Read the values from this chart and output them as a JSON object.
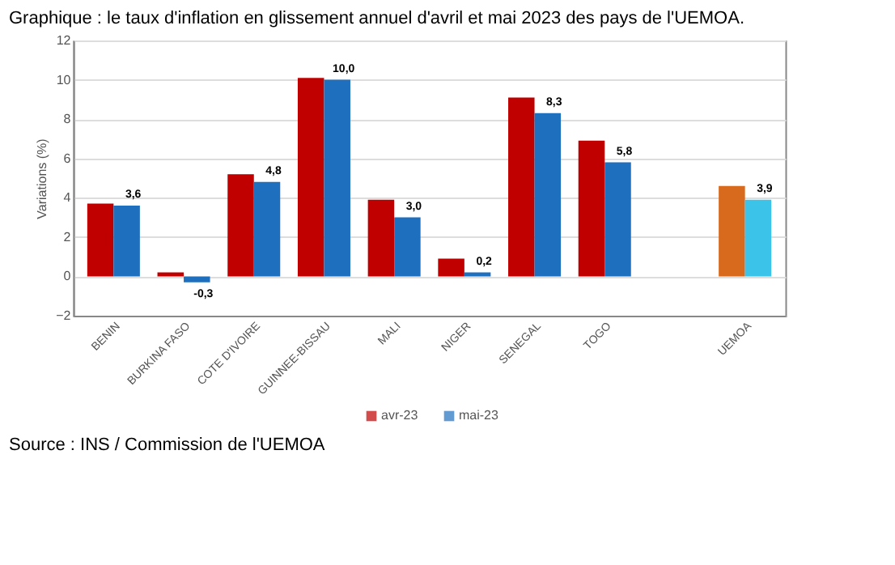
{
  "chart_data": {
    "type": "bar",
    "title": "Graphique : le taux d'inflation en glissement annuel d'avril et mai 2023 des pays de l'UEMOA.",
    "ylabel": "Variations (%)",
    "categories": [
      "BENIN",
      "BURKINA FASO",
      "COTE D'IVOIRE",
      "GUINNEE-BISSAU",
      "MALI",
      "NIGER",
      "SENEGAL",
      "TOGO",
      null,
      "UEMOA"
    ],
    "series": [
      {
        "name": "avr-23",
        "color": "#c00000",
        "colors": [
          "#c00000",
          "#c00000",
          "#c00000",
          "#c00000",
          "#c00000",
          "#c00000",
          "#c00000",
          "#c00000",
          "#c00000",
          "#d86a1e"
        ],
        "values": [
          3.7,
          0.2,
          5.2,
          10.1,
          3.9,
          0.9,
          9.1,
          6.9,
          null,
          4.6
        ]
      },
      {
        "name": "mai-23",
        "color": "#1f6fbf",
        "colors": [
          "#1f6fbf",
          "#1f6fbf",
          "#1f6fbf",
          "#1f6fbf",
          "#1f6fbf",
          "#1f6fbf",
          "#1f6fbf",
          "#1f6fbf",
          "#1f6fbf",
          "#3cc3ea"
        ],
        "values": [
          3.6,
          -0.3,
          4.8,
          10.0,
          3.0,
          0.2,
          8.3,
          5.8,
          null,
          3.9
        ],
        "value_labels": [
          "3,6",
          "-0,3",
          "4,8",
          "10,0",
          "3,0",
          "0,2",
          "8,3",
          "5,8",
          null,
          "3,9"
        ]
      }
    ],
    "ylim": [
      -2,
      12
    ],
    "yticks": [
      -2,
      0,
      2,
      4,
      6,
      8,
      10,
      12
    ],
    "grid": "y",
    "legend": "bottom",
    "annotations": [
      "Source : INS / Commission de l'UEMOA"
    ]
  }
}
